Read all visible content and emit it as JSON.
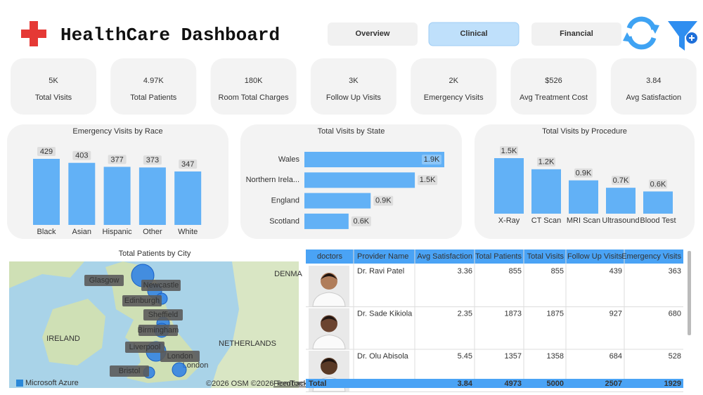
{
  "header": {
    "title": "HealthCare Dashboard",
    "tabs": [
      "Overview",
      "Clinical",
      "Financial"
    ]
  },
  "kpis": [
    {
      "value": "5K",
      "label": "Total Visits"
    },
    {
      "value": "4.97K",
      "label": "Total Patients"
    },
    {
      "value": "180K",
      "label": "Room Total Charges"
    },
    {
      "value": "3K",
      "label": "Follow Up Visits"
    },
    {
      "value": "2K",
      "label": "Emergency Visits"
    },
    {
      "value": "$526",
      "label": "Avg Treatment Cost"
    },
    {
      "value": "3.84",
      "label": "Avg Satisfaction"
    }
  ],
  "chart_data": [
    {
      "type": "bar",
      "title": "Emergency Visits by Race",
      "categories": [
        "Black",
        "Asian",
        "Hispanic",
        "Other",
        "White"
      ],
      "values": [
        429,
        403,
        377,
        373,
        347
      ],
      "color": "#62b1f6"
    },
    {
      "type": "hbar",
      "title": "Total Visits by State",
      "categories": [
        "Wales",
        "Northern Irela...",
        "England",
        "Scotland"
      ],
      "values": [
        1900,
        1500,
        900,
        600
      ],
      "value_labels": [
        "1.9K",
        "1.5K",
        "0.9K",
        "0.6K"
      ],
      "color": "#62b1f6"
    },
    {
      "type": "bar",
      "title": "Total Visits by Procedure",
      "categories": [
        "X-Ray",
        "CT Scan",
        "MRI Scan",
        "Ultrasound",
        "Blood Test"
      ],
      "values": [
        1500,
        1200,
        900,
        700,
        600
      ],
      "value_labels": [
        "1.5K",
        "1.2K",
        "0.9K",
        "0.7K",
        "0.6K"
      ],
      "color": "#62b1f6"
    }
  ],
  "map": {
    "title": "Total Patients by City",
    "cities": [
      "Glasgow",
      "Newcastle",
      "Edinburgh",
      "Sheffield",
      "Birmingham",
      "Liverpool",
      "London",
      "Bristol"
    ],
    "places": [
      "IRELAND",
      "DENMA",
      "NETHERLANDS",
      "London"
    ],
    "brand": "Microsoft Azure",
    "credits": "©2026 OSM ©2026 TomTom",
    "feedback": "Feedback"
  },
  "table": {
    "columns": [
      "doctors",
      "Provider Name",
      "Avg Satisfaction",
      "Total Patients",
      "Total Visits",
      "Follow Up Visits",
      "Emergency Visits"
    ],
    "rows": [
      [
        "Dr. Ravi Patel",
        3.36,
        855,
        855,
        439,
        363
      ],
      [
        "Dr. Sade Kikiola",
        2.35,
        1873,
        1875,
        927,
        680
      ],
      [
        "Dr. Olu Abisola",
        5.45,
        1357,
        1358,
        684,
        528
      ]
    ],
    "total": [
      "Total",
      3.84,
      4973,
      5000,
      2507,
      1929
    ]
  }
}
